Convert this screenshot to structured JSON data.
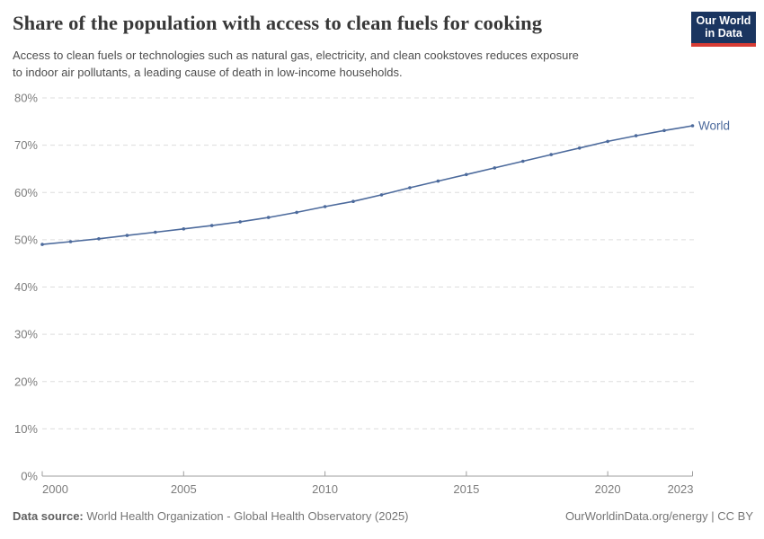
{
  "header": {
    "title": "Share of the population with access to clean fuels for cooking",
    "subtitle_lines": [
      "Access to clean fuels or technologies such as natural gas, electricity, and clean cookstoves reduces exposure",
      "to indoor air pollutants, a leading cause of death in low-income households."
    ],
    "logo": {
      "line1": "Our World",
      "line2": "in Data",
      "bg_color": "#1a3560",
      "stripe_color": "#d73c34",
      "text_color": "#ffffff"
    }
  },
  "chart_data": {
    "type": "line",
    "title": "Share of the population with access to clean fuels for cooking",
    "xlabel": "",
    "ylabel": "",
    "xlim": [
      2000,
      2023
    ],
    "ylim": [
      0,
      80
    ],
    "grid": "horizontal dashed",
    "legend_position": "end-of-line label",
    "xticks": [
      2000,
      2005,
      2010,
      2015,
      2020,
      2023
    ],
    "yticks": [
      0,
      10,
      20,
      30,
      40,
      50,
      60,
      70,
      80
    ],
    "ytick_suffix": "%",
    "series": [
      {
        "name": "World",
        "color": "#4c6a9c",
        "x": [
          2000,
          2001,
          2002,
          2003,
          2004,
          2005,
          2006,
          2007,
          2008,
          2009,
          2010,
          2011,
          2012,
          2013,
          2014,
          2015,
          2016,
          2017,
          2018,
          2019,
          2020,
          2021,
          2022,
          2023
        ],
        "values": [
          49.0,
          49.6,
          50.2,
          50.9,
          51.6,
          52.3,
          53.0,
          53.8,
          54.7,
          55.8,
          57.0,
          58.1,
          59.5,
          61.0,
          62.4,
          63.8,
          65.2,
          66.6,
          68.0,
          69.4,
          70.8,
          72.0,
          73.1,
          74.1
        ]
      }
    ],
    "colors": {
      "gridline": "#dddddd",
      "axis": "#9e9e9e",
      "tick_label": "#7c7c7c"
    }
  },
  "footer": {
    "source_label": "Data source:",
    "source_text": " World Health Organization - Global Health Observatory (2025)",
    "rights": "OurWorldinData.org/energy | CC BY"
  }
}
